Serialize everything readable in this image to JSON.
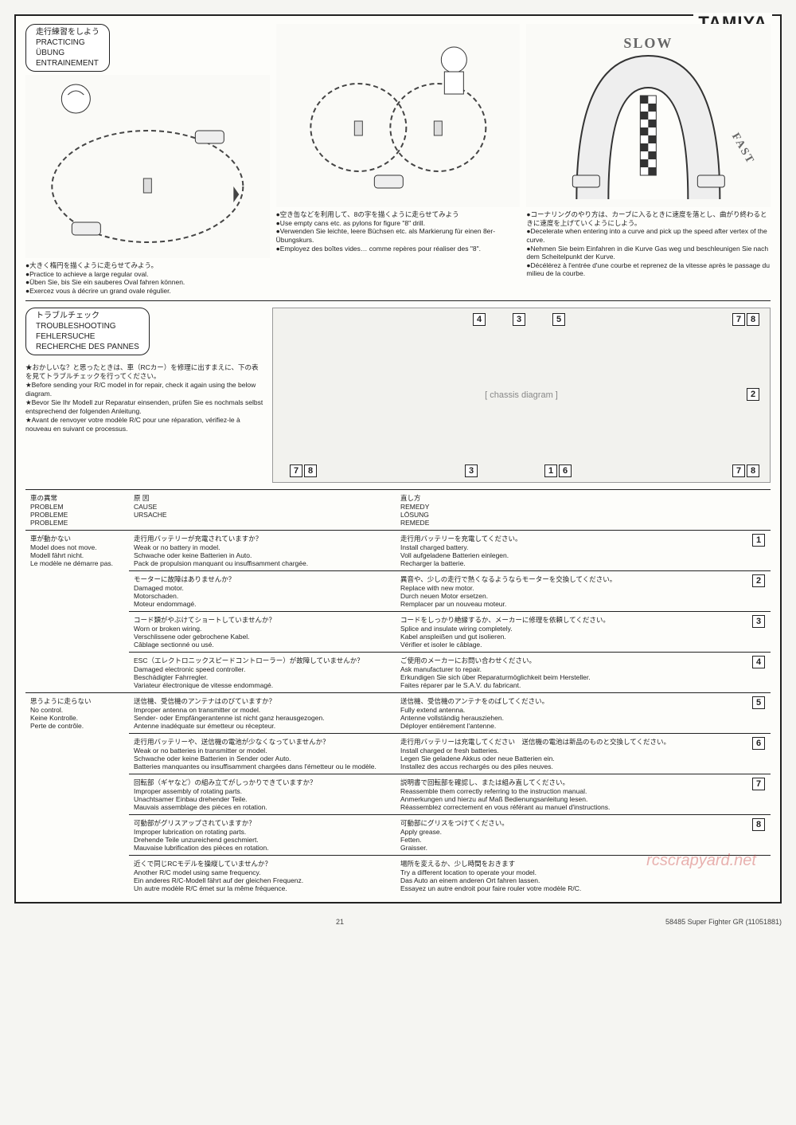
{
  "brand": "TAMIYA",
  "practicing": {
    "title_lines": [
      "走行練習をしよう",
      "PRACTICING",
      "ÜBUNG",
      "ENTRAINEMENT"
    ],
    "col1": {
      "lines": [
        "●大きく楕円を描くように走らせてみよう。",
        "●Practice to achieve a large regular oval.",
        "●Üben Sie, bis Sie ein sauberes Oval fahren können.",
        "●Exercez vous à décrire un grand ovale régulier."
      ]
    },
    "col2": {
      "lines": [
        "●空き缶などを利用して、8の字を描くように走らせてみよう",
        "●Use empty cans etc. as pylons for figure \"8\" drill.",
        "●Verwenden Sie leichte, leere Büchsen etc. als Markierung für einen 8er-Übungskurs.",
        "●Employez des boîtes vides… comme repères pour réaliser des \"8\"."
      ]
    },
    "col3": {
      "slow": "SLOW",
      "fast": "FAST",
      "lines": [
        "●コーナリングのやり方は、カーブに入るときに速度を落とし、曲がり終わるときに速度を上げていくようにしよう。",
        "●Decelerate when entering into a curve and pick up the speed after vertex of the curve.",
        "●Nehmen Sie beim Einfahren in die Kurve Gas weg und beschleunigen Sie nach dem Scheitelpunkt der Kurve.",
        "●Décélérez à l'entrée d'une courbe et reprenez de la vitesse après le passage du milieu de la courbe."
      ]
    }
  },
  "troubleshooting": {
    "title_lines": [
      "トラブルチェック",
      "TROUBLESHOOTING",
      "FEHLERSUCHE",
      "RECHERCHE DES PANNES"
    ],
    "intro": [
      "★おかしいな？と思ったときは、車（RCカー）を修理に出すまえに、下の表を見てトラブルチェックを行ってください。",
      "★Before sending your R/C model in for repair, check it again using the below diagram.",
      "★Bevor Sie Ihr Modell zur Reparatur einsenden, prüfen Sie es nochmals selbst entsprechend der folgenden Anleitung.",
      "★Avant de renvoyer votre modèle R/C pour une réparation, vérifiez-le à nouveau en suivant ce processus."
    ],
    "chassis_numbers": [
      "4",
      "3",
      "5",
      "7",
      "8",
      "7",
      "8",
      "3",
      "1",
      "6",
      "7",
      "8",
      "2"
    ],
    "headers": {
      "problem": [
        "車の異常",
        "PROBLEM",
        "PROBLEME",
        "PROBLEME"
      ],
      "cause": [
        "原 因",
        "CAUSE",
        "URSACHE"
      ],
      "remedy": [
        "直し方",
        "REMEDY",
        "LÖSUNG",
        "REMEDE"
      ]
    },
    "groups": [
      {
        "problem": [
          "車が動かない",
          "Model does not move.",
          "Modell fährt nicht.",
          "Le modèle ne démarre pas."
        ],
        "rows": [
          {
            "num": "1",
            "cause": [
              "走行用バッテリーが充電されていますか？",
              "Weak or no battery in model.",
              "Schwache oder keine Batterien in Auto.",
              "Pack de propulsion manquant ou insuffisamment chargée."
            ],
            "remedy": [
              "走行用バッテリーを充電してください。",
              "Install charged battery.",
              "Voll aufgeladene Batterien einlegen.",
              "Recharger la batterie."
            ]
          },
          {
            "num": "2",
            "cause": [
              "モーターに故障はありませんか？",
              "Damaged motor.",
              "Motorschaden.",
              "Moteur endommagé."
            ],
            "remedy": [
              "異音や、少しの走行で熱くなるようならモーターを交換してください。",
              "Replace with new motor.",
              "Durch neuen Motor ersetzen.",
              "Remplacer par un nouveau moteur."
            ]
          },
          {
            "num": "3",
            "cause": [
              "コード類がやぶけてショートしていませんか？",
              "Worn or broken wiring.",
              "Verschlissene oder gebrochene Kabel.",
              "Câblage sectionné ou usé."
            ],
            "remedy": [
              "コードをしっかり絶縁するか、メーカーに修理を依頼してください。",
              "Splice and insulate wiring completely.",
              "Kabel anspleißen und gut isolieren.",
              "Vérifier et isoler le câblage."
            ]
          },
          {
            "num": "4",
            "cause": [
              "ESC（エレクトロニックスピードコントローラー）が故障していませんか？",
              "Damaged electronic speed controller.",
              "Beschädigter Fahrregler.",
              "Variateur électronique de vitesse endommagé."
            ],
            "remedy": [
              "ご使用のメーカーにお問い合わせください。",
              "Ask manufacturer to repair.",
              "Erkundigen Sie sich über Reparaturmöglichkeit beim Hersteller.",
              "Faites réparer par le S.A.V. du fabricant."
            ]
          }
        ]
      },
      {
        "problem": [
          "思うように走らない",
          "No control.",
          "Keine Kontrolle.",
          "Perte de contrôle."
        ],
        "rows": [
          {
            "num": "5",
            "cause": [
              "送信機、受信機のアンテナはのびていますか？",
              "Improper antenna on transmitter or model.",
              "Sender- oder Empfängerantenne ist nicht ganz herausgezogen.",
              "Antenne inadéquate sur émetteur ou récepteur."
            ],
            "remedy": [
              "送信機、受信機のアンテナをのばしてください。",
              "Fully extend antenna.",
              "Antenne vollständig herausziehen.",
              "Déployer entièrement l'antenne."
            ]
          },
          {
            "num": "6",
            "cause": [
              "走行用バッテリーや、送信機の電池が少なくなっていませんか？",
              "Weak or no batteries in transmitter or model.",
              "Schwache oder keine Batterien in Sender oder Auto.",
              "Batteries manquantes ou insuffisamment chargées dans l'émetteur ou le modèle."
            ],
            "remedy": [
              "走行用バッテリーは充電してください　送信機の電池は新品のものと交換してください。",
              "Install charged or fresh batteries.",
              "Legen Sie geladene Akkus oder neue Batterien ein.",
              "Installez des accus rechargés ou des piles neuves."
            ]
          },
          {
            "num": "7",
            "cause": [
              "回転部（ギヤなど）の組み立てがしっかりできていますか？",
              "Improper assembly of rotating parts.",
              "Unachtsamer Einbau drehender Teile.",
              "Mauvais assemblage des pièces en rotation."
            ],
            "remedy": [
              "説明書で回転部を確認し、または組み直してください。",
              "Reassemble them correctly referring to the instruction manual.",
              "Anmerkungen und hierzu auf Maß Bedienungsanleitung lesen.",
              "Réassemblez correctement en vous référant au manuel d'instructions."
            ]
          },
          {
            "num": "8",
            "cause": [
              "可動部がグリスアップされていますか？",
              "Improper lubrication on rotating parts.",
              "Drehende Teile unzureichend geschmiert.",
              "Mauvaise lubrification des pièces en rotation."
            ],
            "remedy": [
              "可動部にグリスをつけてください。",
              "Apply grease.",
              "Fetten.",
              "Graisser."
            ]
          },
          {
            "num": "",
            "cause": [
              "近くで同じRCモデルを操縦していませんか？",
              "Another R/C model using same frequency.",
              "Ein anderes R/C-Modell fährt auf der gleichen Frequenz.",
              "Un autre modèle R/C émet sur la même fréquence."
            ],
            "remedy": [
              "場所を変えるか、少し時間をおきます",
              "Try a different location to operate your model.",
              "Das Auto an einem anderen Ort fahren lassen.",
              "Essayez un autre endroit pour faire rouler votre modèle R/C."
            ]
          }
        ]
      }
    ]
  },
  "footer": {
    "page": "21",
    "code": "58485 Super Fighter GR (11051881)"
  },
  "watermark": "rcscrapyard.net"
}
